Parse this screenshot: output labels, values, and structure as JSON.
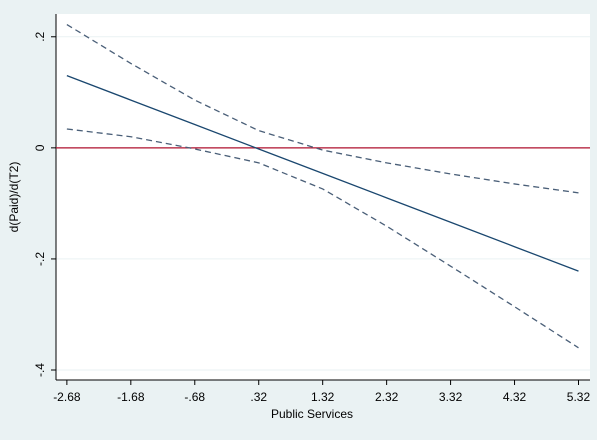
{
  "chart_data": {
    "type": "line",
    "xlabel": "Public Services",
    "ylabel": "d(Paid)/d(T2)",
    "x": [
      -2.68,
      -1.68,
      -0.68,
      0.32,
      1.32,
      2.32,
      3.32,
      4.32,
      5.32
    ],
    "series": [
      {
        "color": "#1a476f",
        "dash": false,
        "values": [
          0.13,
          0.086,
          0.042,
          -0.002,
          -0.046,
          -0.09,
          -0.134,
          -0.178,
          -0.222
        ]
      },
      {
        "color": "#4a5f78",
        "dash": true,
        "values": [
          0.222,
          0.152,
          0.086,
          0.031,
          -0.004,
          -0.027,
          -0.047,
          -0.065,
          -0.081
        ]
      },
      {
        "color": "#4a5f78",
        "dash": true,
        "values": [
          0.034,
          0.02,
          -0.002,
          -0.027,
          -0.074,
          -0.141,
          -0.213,
          -0.286,
          -0.36
        ]
      }
    ],
    "hline": {
      "value": 0,
      "color": "#b0112e"
    },
    "xlim": [
      -2.85,
      5.5
    ],
    "ylim": [
      -0.418,
      0.241
    ],
    "xticks": [
      -2.68,
      -1.68,
      {
        "value": -0.68,
        "label": "-.68"
      },
      {
        "value": 0.32,
        "label": ".32"
      },
      1.32,
      2.32,
      3.32,
      4.32,
      5.32
    ],
    "yticks": [
      {
        "value": -0.4,
        "label": "-.4"
      },
      {
        "value": -0.2,
        "label": "-.2"
      },
      0,
      {
        "value": 0.2,
        "label": ".2"
      }
    ],
    "grid": true
  }
}
